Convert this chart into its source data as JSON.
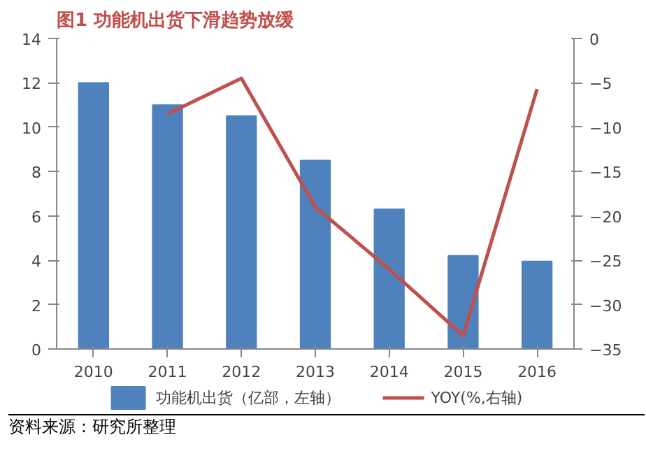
{
  "chart_data": {
    "type": "bar",
    "title": "图1  功能机出货下滑趋势放缓",
    "categories": [
      "2010",
      "2011",
      "2012",
      "2013",
      "2014",
      "2015",
      "2016"
    ],
    "series": [
      {
        "name": "功能机出货（亿部，左轴）",
        "color": "#4f81bd",
        "values": [
          12,
          11,
          10.5,
          8.5,
          6.3,
          4.2,
          3.95
        ]
      },
      {
        "name": "YOY(%,右轴)",
        "type": "line",
        "axis": "y2",
        "color": "#c0504d",
        "values": [
          null,
          -8.5,
          -4.5,
          -19,
          -26,
          -33.5,
          -5.7
        ]
      }
    ],
    "ylim": [
      0,
      14
    ],
    "yticks": [
      0,
      2,
      4,
      6,
      8,
      10,
      12,
      14
    ],
    "y2lim": [
      -35,
      0
    ],
    "y2ticks": [
      -35,
      -30,
      -25,
      -20,
      -15,
      -10,
      -5,
      0
    ],
    "grid": false,
    "legend": "bottom",
    "annotations": [
      "资料来源：研究所整理"
    ]
  }
}
